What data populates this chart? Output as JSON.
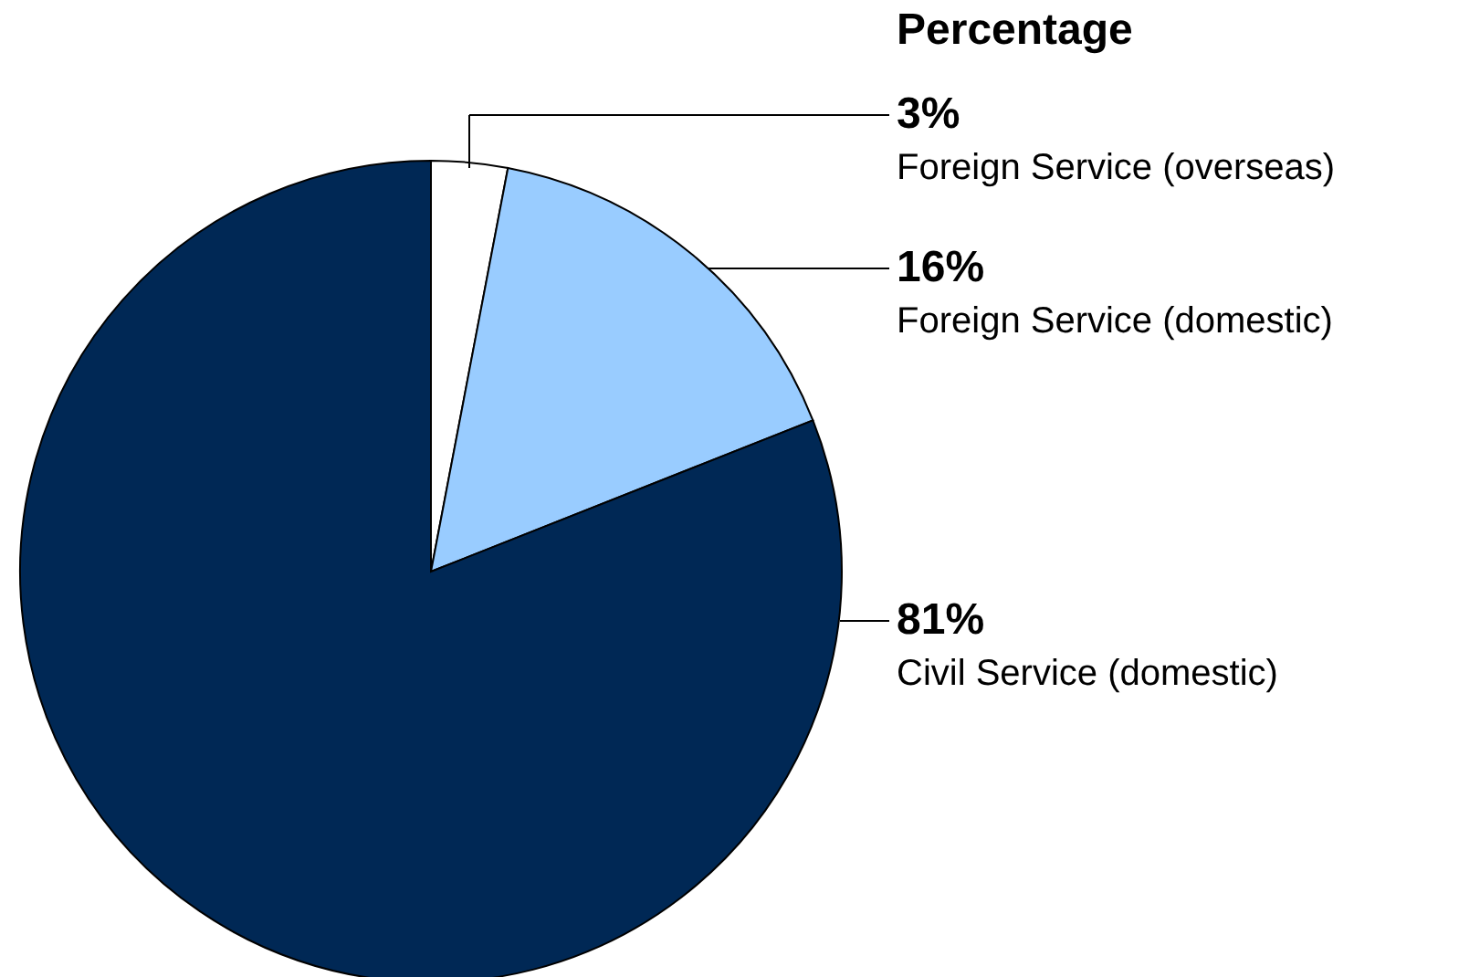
{
  "chart_data": {
    "type": "pie",
    "legend_title": "Percentage",
    "categories": [
      "Foreign Service (overseas)",
      "Foreign Service (domestic)",
      "Civil Service (domestic)"
    ],
    "values": [
      3,
      16,
      81
    ],
    "colors": [
      "#ffffff",
      "#99ccff",
      "#002855"
    ],
    "value_labels": [
      "3%",
      "16%",
      "81%"
    ]
  }
}
